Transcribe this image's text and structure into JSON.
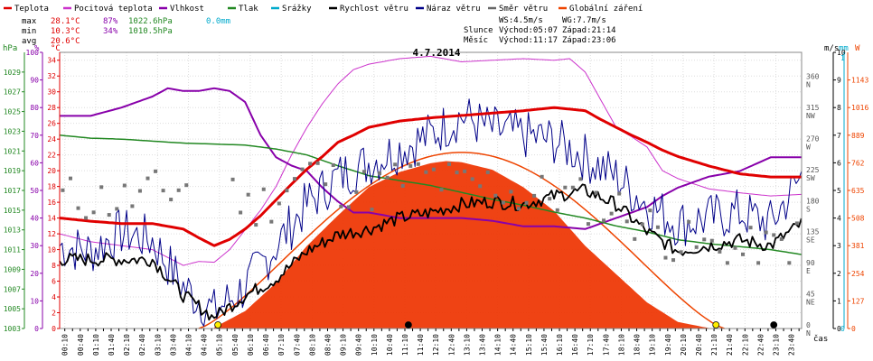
{
  "legend": [
    {
      "label": "Teplota",
      "color": "#e00000"
    },
    {
      "label": "Pocitová teplota",
      "color": "#cc33cc"
    },
    {
      "label": "Vlhkost",
      "color": "#8800aa"
    },
    {
      "label": "Tlak",
      "color": "#228822"
    },
    {
      "label": "Srážky",
      "color": "#00aacc"
    },
    {
      "label": "Rychlost větru",
      "color": "#000000"
    },
    {
      "label": "Náraz větru",
      "color": "#000088"
    },
    {
      "label": "Směr větru",
      "color": "#666666"
    },
    {
      "label": "Globální záření",
      "color": "#ee4400"
    }
  ],
  "stats": {
    "max_label": "max",
    "max_temp": "28.1°C",
    "max_hum": "87%",
    "max_press": "1022.6hPa",
    "max_rain": "0.0mm",
    "min_label": "min",
    "min_temp": "10.3°C",
    "min_hum": "34%",
    "min_press": "1010.5hPa",
    "avg_label": "avg",
    "avg_temp": "20.6°C"
  },
  "astro": {
    "ws": "WS:4.5m/s",
    "wg": "WG:7.7m/s",
    "sun_label": "Slunce",
    "sun_rise": "Východ:05:07",
    "sun_set": "Západ:21:14",
    "moon_label": "Měsíc",
    "moon_rise": "Východ:11:17",
    "moon_set": "Západ:23:06"
  },
  "chart_title": "4.7.2014",
  "x_axis_label": "čas",
  "axis_units": {
    "hpa": "hPa",
    "pct": "%",
    "degc": "°C",
    "ms": "m/s",
    "mm": "mm",
    "w": "W"
  },
  "chart_data": {
    "type": "line",
    "title": "4.7.2014",
    "x_ticks": [
      "00:10",
      "00:25",
      "00:40",
      "00:55",
      "01:10",
      "01:25",
      "01:40",
      "01:55",
      "02:10",
      "02:25",
      "02:40",
      "02:55",
      "03:10",
      "03:25",
      "03:40",
      "03:55",
      "04:10",
      "04:25",
      "04:40",
      "04:55",
      "05:10",
      "05:25",
      "05:40",
      "05:55",
      "06:10",
      "06:25",
      "06:40",
      "06:55",
      "07:10",
      "07:25",
      "07:40",
      "07:55",
      "08:10",
      "08:25",
      "08:40",
      "08:55",
      "09:10",
      "09:25",
      "09:40",
      "09:55",
      "10:10",
      "10:25",
      "10:40",
      "10:55",
      "11:10",
      "11:25",
      "11:40",
      "11:55",
      "12:10",
      "12:25",
      "12:40",
      "12:55",
      "13:10",
      "13:25",
      "13:40",
      "13:55",
      "14:10",
      "14:25",
      "14:40",
      "14:55",
      "15:10",
      "15:25",
      "15:40",
      "15:55",
      "16:10",
      "16:25",
      "16:40",
      "16:55",
      "17:10",
      "17:25",
      "17:40",
      "17:55",
      "18:10",
      "18:25",
      "18:40",
      "18:55",
      "19:10",
      "19:25",
      "19:40",
      "19:55",
      "20:10",
      "20:25",
      "20:40",
      "20:55",
      "21:10",
      "21:25",
      "21:40",
      "21:55",
      "22:10",
      "22:25",
      "22:40",
      "22:55",
      "23:10",
      "23:25",
      "23:40",
      "23:55"
    ],
    "x_label_interval": 4,
    "axes": {
      "pressure_hpa": {
        "range": [
          1003,
          1031
        ],
        "ticks": [
          1003,
          1005,
          1007,
          1009,
          1011,
          1013,
          1015,
          1017,
          1019,
          1021,
          1023,
          1025,
          1027,
          1029
        ]
      },
      "humidity_pct": {
        "range": [
          0,
          100
        ],
        "ticks": [
          0,
          10,
          20,
          30,
          40,
          50,
          60,
          70,
          80,
          90,
          100
        ]
      },
      "temperature_c": {
        "range": [
          0,
          35
        ],
        "ticks": [
          0,
          2,
          4,
          6,
          8,
          10,
          12,
          14,
          16,
          18,
          20,
          22,
          24,
          26,
          28,
          30,
          32,
          34
        ]
      },
      "wind_ms": {
        "range": [
          0,
          10
        ],
        "ticks": [
          0,
          1,
          2,
          3,
          4,
          5,
          6,
          7,
          8,
          9,
          10
        ]
      },
      "direction": {
        "labels": [
          "N",
          "NE",
          "E",
          "SE",
          "S",
          "SW",
          "W",
          "NW",
          "N"
        ],
        "degrees": [
          0,
          45,
          90,
          135,
          180,
          225,
          270,
          315,
          360
        ]
      },
      "radiation_w": {
        "range": [
          0,
          1270
        ],
        "ticks": [
          0,
          127,
          254,
          381,
          508,
          635,
          762,
          889,
          1016,
          1143
        ]
      }
    },
    "series": [
      {
        "name": "Teplota",
        "unit": "°C",
        "hours": [
          0,
          1,
          2,
          3,
          4,
          4.5,
          5,
          5.5,
          6,
          6.5,
          7,
          7.5,
          8,
          8.5,
          9,
          9.5,
          10,
          11,
          12,
          13,
          14,
          15,
          16,
          17,
          17.5,
          18,
          18.5,
          19,
          19.5,
          20,
          21,
          22,
          23,
          24
        ],
        "values": [
          14,
          13.6,
          13.3,
          13.3,
          12.6,
          11.5,
          10.5,
          11.3,
          12.6,
          14.3,
          16.3,
          18.3,
          20.2,
          21.8,
          23.6,
          24.5,
          25.5,
          26.3,
          26.7,
          27,
          27.3,
          27.6,
          28,
          27.6,
          26.5,
          25.5,
          24.5,
          23.6,
          22.6,
          21.8,
          20.6,
          19.6,
          19.2,
          19.2
        ]
      },
      {
        "name": "Pocitová teplota",
        "unit": "°C",
        "hours": [
          0,
          1,
          2,
          3,
          3.5,
          4,
          4.5,
          5,
          5.5,
          6,
          6.5,
          7,
          7.5,
          8,
          8.5,
          9,
          9.5,
          10,
          11,
          12,
          13,
          14,
          15,
          16,
          16.5,
          17,
          17.5,
          18,
          18.5,
          19,
          19.5,
          20,
          21,
          22,
          23,
          24
        ],
        "values": [
          12,
          11,
          10.5,
          10,
          9,
          8,
          8.5,
          8.4,
          10,
          12.5,
          15,
          18,
          22,
          25.5,
          28.5,
          31,
          32.8,
          33.5,
          34.2,
          34.5,
          33.8,
          34,
          34.2,
          34,
          34.2,
          32.5,
          29,
          25.5,
          24.3,
          23,
          20,
          19,
          17.7,
          17.2,
          16.8,
          17
        ]
      },
      {
        "name": "Vlhkost",
        "unit": "%",
        "hours": [
          0,
          1,
          2,
          3,
          3.5,
          4,
          4.5,
          5,
          5.5,
          6,
          6.5,
          7,
          7.5,
          8,
          8.5,
          9,
          9.5,
          10,
          11,
          12,
          13,
          14,
          15,
          16,
          17,
          17.5,
          18,
          18.5,
          19,
          19.5,
          20,
          21,
          22,
          23,
          24
        ],
        "values": [
          77,
          77,
          80,
          84,
          87,
          86,
          86,
          87,
          86,
          82,
          70,
          62,
          59,
          57,
          51,
          46,
          42,
          42,
          40,
          40,
          40,
          39,
          37,
          37,
          36,
          38,
          40,
          42,
          44,
          48,
          51,
          55,
          57,
          62,
          62
        ]
      },
      {
        "name": "Tlak",
        "unit": "hPa",
        "hours": [
          0,
          1,
          2,
          3,
          4,
          5,
          6,
          7,
          8,
          9,
          10,
          11,
          12,
          13,
          14,
          15,
          16,
          17,
          18,
          19,
          20,
          21,
          22,
          23,
          24
        ],
        "values": [
          1022.6,
          1022.3,
          1022.2,
          1022.0,
          1021.8,
          1021.7,
          1021.6,
          1021.2,
          1020.6,
          1019.5,
          1018.5,
          1018.0,
          1017.5,
          1016.8,
          1016.1,
          1015.5,
          1014.8,
          1014.2,
          1013.4,
          1012.8,
          1012.0,
          1011.6,
          1011.3,
          1011.0,
          1010.5
        ]
      },
      {
        "name": "Srážky",
        "unit": "mm",
        "hours": [
          0,
          24
        ],
        "values": [
          0,
          0
        ]
      },
      {
        "name": "Rychlost větru",
        "unit": "m/s",
        "hours": [
          0,
          1,
          2,
          3,
          4,
          5,
          6,
          7,
          8,
          9,
          10,
          11,
          12,
          13,
          14,
          15,
          16,
          17,
          18,
          19,
          20,
          21,
          22,
          23,
          24
        ],
        "values": [
          2.5,
          2.5,
          2.5,
          2.5,
          1.2,
          0.4,
          1.2,
          1.8,
          2.8,
          3.4,
          3.6,
          4,
          4.2,
          4.5,
          4.6,
          4.5,
          4.8,
          5,
          4.5,
          3.5,
          2.8,
          3,
          3.2,
          3,
          3.8
        ]
      },
      {
        "name": "Náraz větru",
        "unit": "m/s",
        "hours": [
          0,
          1,
          2,
          3,
          4,
          5,
          6,
          7,
          8,
          9,
          10,
          11,
          12,
          13,
          14,
          15,
          16,
          17,
          18,
          19,
          20,
          21,
          22,
          23,
          24
        ],
        "values": [
          3,
          2.8,
          3.5,
          3.2,
          1.5,
          0.6,
          1.5,
          3,
          4.5,
          5.5,
          6,
          6.5,
          7,
          7.7,
          7.2,
          7,
          6.8,
          6.2,
          5.5,
          4.5,
          3.8,
          4,
          4.2,
          3.8,
          5.5
        ]
      },
      {
        "name": "Směr větru",
        "unit": "°",
        "hours": [
          0,
          2,
          4,
          5,
          6,
          7,
          8,
          9,
          10,
          11,
          12,
          13,
          14,
          15,
          16,
          17,
          18,
          19,
          20,
          21,
          22,
          23,
          24
        ],
        "values": [
          190,
          185,
          205,
          270,
          170,
          190,
          230,
          210,
          200,
          215,
          220,
          205,
          210,
          190,
          195,
          185,
          175,
          150,
          125,
          115,
          110,
          115,
          130
        ]
      },
      {
        "name": "Globální záření",
        "unit": "W",
        "hours": [
          5,
          6,
          7,
          8,
          9,
          10,
          11,
          12,
          12.5,
          13,
          14,
          15,
          16,
          17,
          18,
          19,
          20,
          21
        ],
        "values": [
          5,
          80,
          210,
          380,
          520,
          650,
          720,
          760,
          770,
          765,
          730,
          650,
          540,
          380,
          250,
          120,
          30,
          2
        ]
      }
    ],
    "grid": true,
    "legend_position": "top"
  }
}
